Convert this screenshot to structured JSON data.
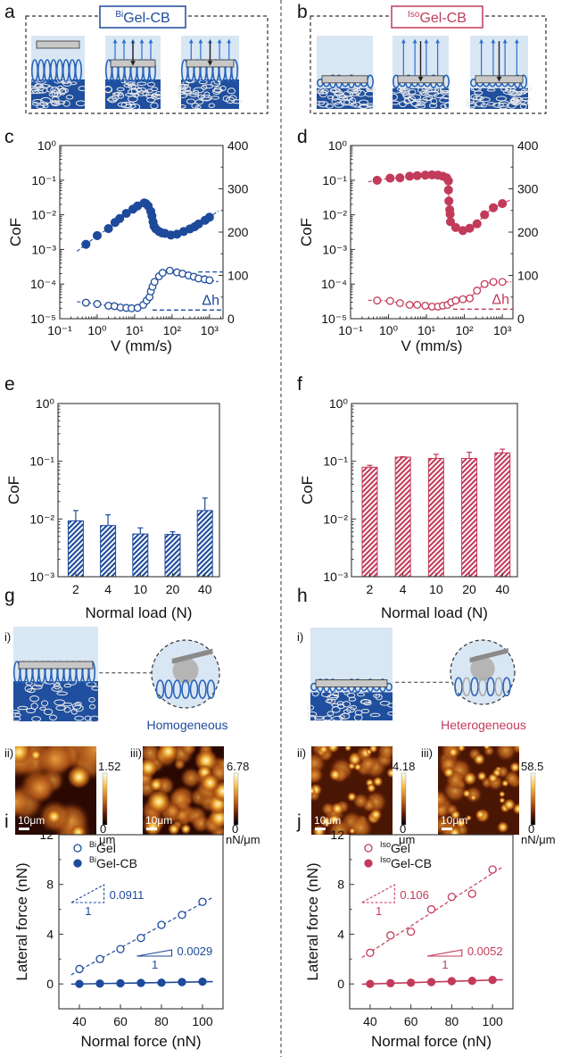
{
  "colors": {
    "bi": "#1d4a9b",
    "iso": "#c23b5a",
    "axis": "#333333"
  },
  "panels": {
    "a": {
      "label": "a",
      "title_sup": "Bi",
      "title": "Gel-CB"
    },
    "b": {
      "label": "b",
      "title_sup": "Iso",
      "title": "Gel-CB"
    },
    "c": {
      "label": "c"
    },
    "d": {
      "label": "d"
    },
    "e": {
      "label": "e"
    },
    "f": {
      "label": "f"
    },
    "g": {
      "label": "g",
      "sub_i": "i)",
      "sub_ii": "ii)",
      "sub_iii": "iii)",
      "caption": "Homogeneous",
      "scale_bar": "10μm",
      "height_map": {
        "max": "1.52",
        "min": "0",
        "unit": "μm"
      },
      "friction_map": {
        "max": "6.78",
        "min": "0",
        "unit": "nN/μm"
      }
    },
    "h": {
      "label": "h",
      "sub_i": "i)",
      "sub_ii": "ii)",
      "sub_iii": "iii)",
      "caption": "Heterogeneous",
      "scale_bar": "10μm",
      "height_map": {
        "max": "4.18",
        "min": "0",
        "unit": "μm"
      },
      "friction_map": {
        "max": "58.5",
        "min": "0",
        "unit": "nN/μm"
      }
    },
    "i": {
      "label": "i"
    },
    "j": {
      "label": "j"
    }
  },
  "chart_data": [
    {
      "panel": "c",
      "type": "scatter",
      "xlabel": "V (mm/s)",
      "ylabel": "CoF",
      "x_scale": "log",
      "y_scale": "log",
      "xlim": [
        0.1,
        2300
      ],
      "ylim": [
        1e-05,
        1
      ],
      "y2lim": [
        0,
        400
      ],
      "x_tick_values": [
        0.1,
        1,
        10,
        100,
        1000
      ],
      "x_tick_labels": [
        "10⁻¹",
        "10⁰",
        "10¹",
        "10²",
        "10³"
      ],
      "y_tick_values": [
        1,
        0.1,
        0.01,
        0.001,
        0.0001,
        1e-05
      ],
      "y_tick_labels": [
        "10⁰",
        "10⁻¹",
        "10⁻²",
        "10⁻³",
        "10⁻⁴",
        "10⁻⁵"
      ],
      "y2_tick_values": [
        400,
        300,
        200,
        100,
        0
      ],
      "y2_tick_labels": [
        "400",
        "300",
        "200",
        "100",
        "0"
      ],
      "color": "#1d4a9b",
      "series": [
        {
          "marker": "filled",
          "axis": "left",
          "x": [
            0.5,
            1,
            2,
            3,
            4,
            6,
            9,
            12,
            18,
            20,
            23,
            27,
            29,
            31,
            33,
            37,
            45,
            54,
            65,
            93,
            135,
            204,
            300,
            400,
            510,
            760,
            1000
          ],
          "y": [
            0.0014,
            0.0025,
            0.004,
            0.006,
            0.0078,
            0.011,
            0.0145,
            0.018,
            0.022,
            0.021,
            0.018,
            0.0126,
            0.0093,
            0.0063,
            0.0047,
            0.0039,
            0.0033,
            0.003,
            0.0029,
            0.0026,
            0.00275,
            0.0033,
            0.0039,
            0.0045,
            0.0054,
            0.0069,
            0.0085
          ]
        },
        {
          "marker": "open",
          "axis": "right",
          "x": [
            0.5,
            1,
            2,
            2.9,
            4.2,
            6,
            8.3,
            12,
            17,
            21,
            25,
            27,
            30,
            34,
            45,
            56,
            87,
            135,
            190,
            275,
            380,
            510,
            740,
            1000
          ],
          "y": [
            37,
            34,
            30,
            29,
            26,
            25,
            24,
            25,
            32,
            42,
            50,
            63,
            74,
            85,
            98,
            106,
            111,
            107,
            104,
            100,
            97,
            93,
            91,
            89
          ]
        }
      ],
      "delta_h": {
        "label": "Δh",
        "lines": [
          {
            "value": 20,
            "from_x": 30
          },
          {
            "value": 108,
            "from_x": 500
          }
        ]
      }
    },
    {
      "panel": "d",
      "type": "scatter",
      "xlabel": "V (mm/s)",
      "ylabel": "CoF",
      "x_scale": "log",
      "y_scale": "log",
      "xlim": [
        0.1,
        1900
      ],
      "ylim": [
        1e-05,
        1
      ],
      "y2lim": [
        0,
        400
      ],
      "x_tick_values": [
        0.1,
        1,
        10,
        100,
        1000
      ],
      "x_tick_labels": [
        "10⁻¹",
        "10⁰",
        "10¹",
        "10²",
        "10³"
      ],
      "y_tick_values": [
        1,
        0.1,
        0.01,
        0.001,
        0.0001,
        1e-05
      ],
      "y_tick_labels": [
        "10⁰",
        "10⁻¹",
        "10⁻²",
        "10⁻³",
        "10⁻⁴",
        "10⁻⁵"
      ],
      "y2_tick_values": [
        400,
        300,
        200,
        100,
        0
      ],
      "y2_tick_labels": [
        "400",
        "300",
        "200",
        "100",
        "0"
      ],
      "color": "#c23b5a",
      "series": [
        {
          "marker": "filled",
          "axis": "left",
          "x": [
            0.5,
            1.1,
            2,
            3.6,
            5.7,
            9.3,
            14,
            20,
            27,
            34,
            38,
            38,
            39,
            41,
            42,
            43,
            59,
            91,
            138,
            215,
            340,
            580,
            1000
          ],
          "y": [
            0.099,
            0.114,
            0.117,
            0.13,
            0.135,
            0.14,
            0.142,
            0.14,
            0.13,
            0.117,
            0.095,
            0.052,
            0.025,
            0.014,
            0.0104,
            0.0063,
            0.0043,
            0.0035,
            0.0041,
            0.0055,
            0.01,
            0.016,
            0.021
          ]
        },
        {
          "marker": "open",
          "axis": "right",
          "x": [
            0.5,
            1.1,
            2,
            3.6,
            5.7,
            9.3,
            14,
            20,
            27,
            36,
            45,
            59,
            91,
            138,
            215,
            340,
            580,
            1000
          ],
          "y": [
            42,
            41,
            36,
            32,
            32,
            30,
            28,
            28,
            30,
            32,
            38,
            42,
            45,
            47,
            65,
            80,
            85,
            85
          ]
        }
      ],
      "delta_h": {
        "label": "Δh",
        "lines": [
          {
            "value": 22,
            "from_x": 50
          }
        ]
      }
    },
    {
      "panel": "e",
      "type": "bar",
      "xlabel": "Normal load (N)",
      "ylabel": "CoF",
      "y_scale": "log",
      "ylim": [
        0.001,
        1
      ],
      "y_tick_values": [
        1,
        0.1,
        0.01,
        0.001
      ],
      "y_tick_labels": [
        "10⁰",
        "10⁻¹",
        "10⁻²",
        "10⁻³"
      ],
      "categories": [
        "2",
        "4",
        "10",
        "20",
        "40"
      ],
      "values": [
        0.0093,
        0.0077,
        0.0055,
        0.0054,
        0.014
      ],
      "error_upper": [
        0.014,
        0.0118,
        0.007,
        0.006,
        0.023
      ],
      "color": "#1d4a9b",
      "fill": "hatched"
    },
    {
      "panel": "f",
      "type": "bar",
      "xlabel": "Normal load (N)",
      "ylabel": "CoF",
      "y_scale": "log",
      "ylim": [
        0.001,
        1
      ],
      "y_tick_values": [
        1,
        0.1,
        0.01,
        0.001
      ],
      "y_tick_labels": [
        "10⁰",
        "10⁻¹",
        "10⁻²",
        "10⁻³"
      ],
      "categories": [
        "2",
        "4",
        "10",
        "20",
        "40"
      ],
      "values": [
        0.079,
        0.118,
        0.112,
        0.112,
        0.14
      ],
      "error_upper": [
        0.085,
        0.12,
        0.132,
        0.143,
        0.162
      ],
      "color": "#c23b5a",
      "fill": "hatched"
    },
    {
      "panel": "i",
      "type": "scatter",
      "xlabel": "Normal force (nN)",
      "ylabel": "Lateral force (nN)",
      "xlim": [
        30,
        110
      ],
      "ylim": [
        -2,
        12
      ],
      "x_tick_values": [
        40,
        60,
        80,
        100
      ],
      "x_tick_labels": [
        "40",
        "60",
        "80",
        "100"
      ],
      "y_tick_values": [
        0,
        4,
        8,
        12
      ],
      "y_tick_labels": [
        "0",
        "4",
        "8",
        "12"
      ],
      "color": "#1d4a9b",
      "legend": "top-left",
      "x": [
        40,
        50,
        60,
        70,
        80,
        90,
        100
      ],
      "series": [
        {
          "name_sup": "Bi",
          "name": "Gel",
          "marker": "open",
          "fit": "dashed",
          "values": [
            1.2,
            2.0,
            2.8,
            3.7,
            4.75,
            5.55,
            6.6
          ],
          "slope_label": "0.0911",
          "run_label": "1"
        },
        {
          "name_sup": "Bi",
          "name": "Gel-CB",
          "marker": "filled",
          "fit": "solid",
          "values": [
            0.0,
            0.03,
            0.05,
            0.08,
            0.1,
            0.15,
            0.18
          ],
          "slope_label": "0.0029",
          "run_label": "1"
        }
      ]
    },
    {
      "panel": "j",
      "type": "scatter",
      "xlabel": "Normal force (nN)",
      "ylabel": "Lateral force (nN)",
      "xlim": [
        30,
        110
      ],
      "ylim": [
        -2,
        12
      ],
      "x_tick_values": [
        40,
        60,
        80,
        100
      ],
      "x_tick_labels": [
        "40",
        "60",
        "80",
        "100"
      ],
      "y_tick_values": [
        0,
        4,
        8,
        12
      ],
      "y_tick_labels": [
        "0",
        "4",
        "8",
        "12"
      ],
      "color": "#c23b5a",
      "legend": "top-left",
      "x": [
        40,
        50,
        60,
        70,
        80,
        90,
        100
      ],
      "series": [
        {
          "name_sup": "Iso",
          "name": "Gel",
          "marker": "open",
          "fit": "dashed",
          "values": [
            2.5,
            3.9,
            4.2,
            6.0,
            7.0,
            7.25,
            9.2
          ],
          "slope_label": "0.106",
          "run_label": "1"
        },
        {
          "name_sup": "Iso",
          "name": "Gel-CB",
          "marker": "filled",
          "fit": "solid",
          "values": [
            0.0,
            0.06,
            0.1,
            0.15,
            0.22,
            0.25,
            0.32
          ],
          "slope_label": "0.0052",
          "run_label": "1"
        }
      ]
    }
  ]
}
